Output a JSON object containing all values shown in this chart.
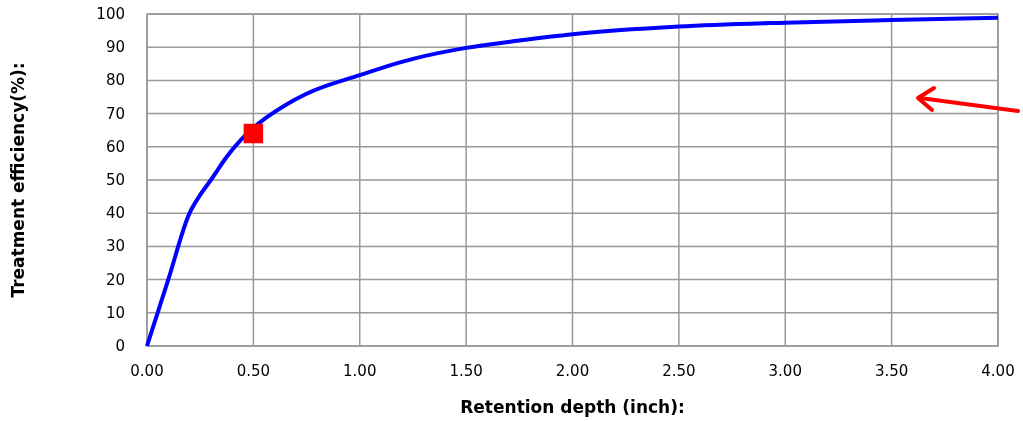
{
  "chart_data": {
    "type": "line",
    "xlabel": "Retention depth (inch):",
    "ylabel": "Treatment efficiency(%):",
    "xlim": [
      0,
      4
    ],
    "ylim": [
      0,
      100
    ],
    "xticks": [
      {
        "value": 0,
        "label": "0.00"
      },
      {
        "value": 0.5,
        "label": "0.50"
      },
      {
        "value": 1,
        "label": "1.00"
      },
      {
        "value": 1.5,
        "label": "1.50"
      },
      {
        "value": 2,
        "label": "2.00"
      },
      {
        "value": 2.5,
        "label": "2.50"
      },
      {
        "value": 3,
        "label": "3.00"
      },
      {
        "value": 3.5,
        "label": "3.50"
      },
      {
        "value": 4,
        "label": "4.00"
      }
    ],
    "yticks": [
      0,
      10,
      20,
      30,
      40,
      50,
      60,
      70,
      80,
      90,
      100
    ],
    "grid": true,
    "series": [
      {
        "color": "#0000ff",
        "marker": "none",
        "x": [
          0,
          0.05,
          0.1,
          0.2,
          0.25,
          0.3,
          0.375,
          0.5,
          0.69,
          0.75,
          1,
          1.25,
          1.5,
          1.75,
          2,
          2.5,
          3,
          3.5,
          4
        ],
        "values": [
          0,
          10,
          20,
          40,
          45.5,
          50,
          57,
          null,
          74,
          76,
          81.6,
          86.5,
          89.8,
          92,
          93.9,
          96.2,
          97.4,
          98.2,
          98.9
        ]
      },
      {
        "type": "scatter",
        "color": "#ff0000",
        "marker": "square",
        "x": [
          0.5
        ],
        "values": [
          64
        ]
      }
    ]
  }
}
